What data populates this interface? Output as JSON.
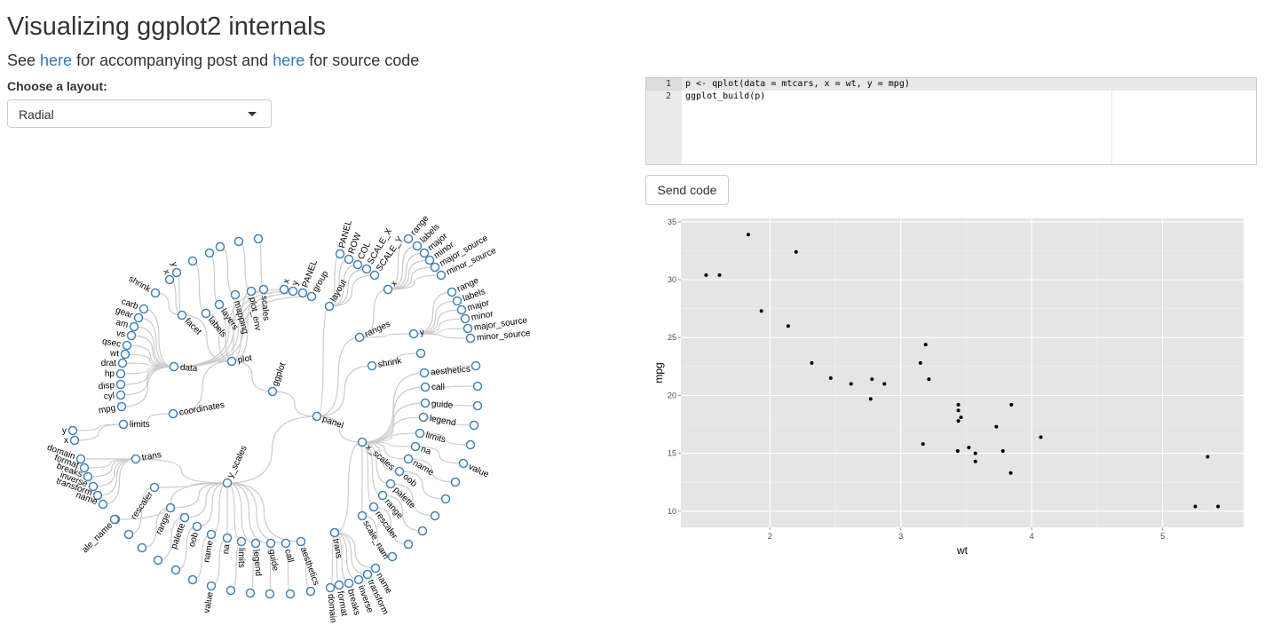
{
  "header": {
    "title": "Visualizing ggplot2 internals",
    "subtitle": {
      "see": "See ",
      "link1": "here",
      "mid": " for accompanying post and ",
      "link2": "here",
      "end": " for source code"
    }
  },
  "layout_select": {
    "label": "Choose a layout:",
    "value": "Radial"
  },
  "editor": {
    "lines": [
      {
        "num": "1",
        "text": "p <- qplot(data = mtcars, x = wt, y = mpg)"
      },
      {
        "num": "2",
        "text": "ggplot_build(p)"
      }
    ]
  },
  "send_button": {
    "label": "Send code"
  },
  "tree_labels": {
    "ggplot": "ggplot",
    "plot": "plot",
    "data": "data",
    "panel": "panel",
    "layout": "layout",
    "ranges": "ranges",
    "shrink": "shrink",
    "x_scales": "x_scales",
    "y_scales": "y_scales",
    "limits": "limits",
    "coordinates": "coordinates",
    "trans": "trans",
    "facet": "facet",
    "labels": "labels",
    "layers": "layers",
    "mapping": "mapping",
    "plot_env": "plot_env",
    "scales": "scales",
    "x": "x",
    "y": "y",
    "PANEL": "PANEL",
    "group": "group",
    "ROW": "ROW",
    "COL": "COL",
    "SCALE_X": "SCALE_X",
    "SCALE_Y": "SCALE_Y",
    "range": "range",
    "major": "major",
    "minor": "minor",
    "major_source": "major_source",
    "minor_source": "minor_source",
    "aesthetics": "aesthetics",
    "call": "call",
    "guide": "guide",
    "legend": "legend",
    "na": "na",
    "name": "name",
    "value": "value",
    "oob": "oob",
    "palette": "palette",
    "rescaler": "rescaler",
    "scale_name": "scale_nam",
    "scale_name_y": "ale_name",
    "transform": "transform",
    "inverse": "inverse",
    "breaks": "breaks",
    "format": "format",
    "domain": "domain",
    "carb": "carb",
    "gear": "gear",
    "am": "am",
    "vs": "vs",
    "qsec": "qsec",
    "wt": "wt",
    "drat": "drat",
    "hp": "hp",
    "disp": "disp",
    "cyl": "cyl",
    "mpg": "mpg"
  },
  "chart_data": {
    "type": "scatter",
    "xlabel": "wt",
    "ylabel": "mpg",
    "xlim": [
      1.32,
      5.62
    ],
    "ylim": [
      8.6,
      35.3
    ],
    "x_ticks": [
      2,
      3,
      4,
      5
    ],
    "y_ticks": [
      10,
      15,
      20,
      25,
      30,
      35
    ],
    "grid": true,
    "points": [
      [
        2.62,
        21.0
      ],
      [
        2.875,
        21.0
      ],
      [
        2.32,
        22.8
      ],
      [
        3.215,
        21.4
      ],
      [
        3.44,
        18.7
      ],
      [
        3.46,
        18.1
      ],
      [
        3.57,
        14.3
      ],
      [
        3.19,
        24.4
      ],
      [
        3.15,
        22.8
      ],
      [
        3.44,
        19.2
      ],
      [
        3.44,
        17.8
      ],
      [
        4.07,
        16.4
      ],
      [
        3.73,
        17.3
      ],
      [
        3.78,
        15.2
      ],
      [
        5.25,
        10.4
      ],
      [
        5.424,
        10.4
      ],
      [
        5.345,
        14.7
      ],
      [
        2.2,
        32.4
      ],
      [
        1.615,
        30.4
      ],
      [
        1.835,
        33.9
      ],
      [
        2.465,
        21.5
      ],
      [
        3.52,
        15.5
      ],
      [
        3.435,
        15.2
      ],
      [
        3.84,
        13.3
      ],
      [
        3.845,
        19.2
      ],
      [
        1.935,
        27.3
      ],
      [
        2.14,
        26.0
      ],
      [
        1.513,
        30.4
      ],
      [
        3.17,
        15.8
      ],
      [
        2.77,
        19.7
      ],
      [
        3.57,
        15.0
      ],
      [
        2.78,
        21.4
      ]
    ]
  }
}
